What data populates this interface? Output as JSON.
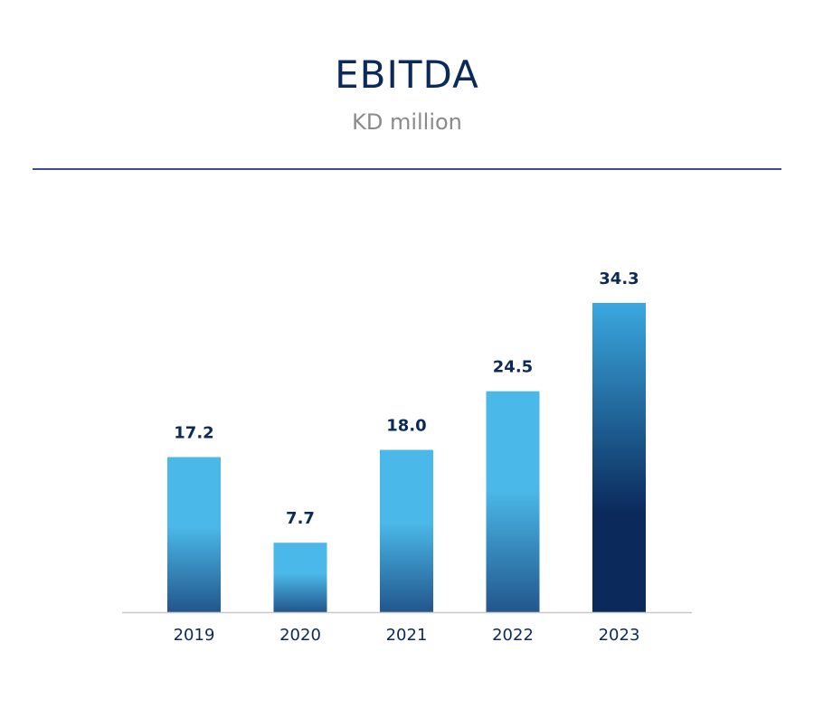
{
  "chart_data": {
    "type": "bar",
    "title": "EBITDA",
    "subtitle": "KD million",
    "categories": [
      "2019",
      "2020",
      "2021",
      "2022",
      "2023"
    ],
    "values": [
      17.2,
      7.7,
      18.0,
      24.5,
      34.3
    ],
    "value_labels": [
      "17.2",
      "7.7",
      "18.0",
      "24.5",
      "34.3"
    ],
    "xlabel": "",
    "ylabel": "",
    "ylim": [
      0,
      34.3
    ],
    "grid": false,
    "legend": "none",
    "highlight_index": 4
  },
  "colors": {
    "title": "#0b2a5b",
    "subtitle": "#8a8a8a",
    "rule": "#3d4c8f",
    "baseline": "#c8c8c8",
    "bar_top": "#4ab8e8",
    "bar_bottom": "#22568c",
    "highlight_top": "#3aa8df",
    "highlight_bottom": "#0b2a5b",
    "value_label": "#0b2a5b",
    "tick_label": "#0b2a5b"
  }
}
